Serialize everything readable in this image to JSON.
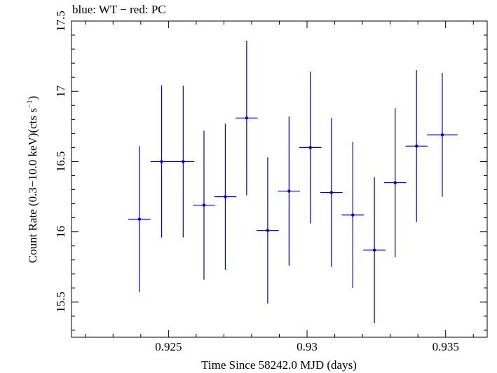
{
  "chart_data": {
    "type": "scatter",
    "title": "blue: WT − red: PC",
    "xlabel": "Time Since 58242.0 MJD (days)",
    "ylabel_main": "Count Rate (0.3−10.0 keV)(cts s",
    "ylabel_sup": "−1",
    "ylabel_end": ")",
    "xlim": [
      0.9215,
      0.9365
    ],
    "ylim": [
      15.25,
      17.5
    ],
    "x_ticks": [
      0.925,
      0.93,
      0.935
    ],
    "x_tick_labels": [
      "0.925",
      "0.93",
      "0.935"
    ],
    "y_ticks": [
      15.5,
      16,
      16.5,
      17,
      17.5
    ],
    "y_tick_labels": [
      "15.5",
      "16",
      "16.5",
      "17",
      "17.5"
    ],
    "series": [
      {
        "name": "WT",
        "color": "#0000cc",
        "points": [
          {
            "x": 0.92395,
            "xerr": 0.0004,
            "y": 16.09,
            "yerr": 0.52
          },
          {
            "x": 0.92475,
            "xerr": 0.0004,
            "y": 16.5,
            "yerr": 0.54
          },
          {
            "x": 0.92553,
            "xerr": 0.0004,
            "y": 16.5,
            "yerr": 0.54
          },
          {
            "x": 0.92628,
            "xerr": 0.0004,
            "y": 16.19,
            "yerr": 0.53
          },
          {
            "x": 0.92705,
            "xerr": 0.0004,
            "y": 16.25,
            "yerr": 0.52
          },
          {
            "x": 0.92782,
            "xerr": 0.0004,
            "y": 16.81,
            "yerr": 0.55
          },
          {
            "x": 0.92858,
            "xerr": 0.0004,
            "y": 16.01,
            "yerr": 0.52
          },
          {
            "x": 0.92935,
            "xerr": 0.0004,
            "y": 16.29,
            "yerr": 0.53
          },
          {
            "x": 0.93012,
            "xerr": 0.0004,
            "y": 16.6,
            "yerr": 0.54
          },
          {
            "x": 0.93088,
            "xerr": 0.0004,
            "y": 16.28,
            "yerr": 0.53
          },
          {
            "x": 0.93165,
            "xerr": 0.0004,
            "y": 16.12,
            "yerr": 0.52
          },
          {
            "x": 0.93243,
            "xerr": 0.0004,
            "y": 15.87,
            "yerr": 0.52
          },
          {
            "x": 0.93318,
            "xerr": 0.0004,
            "y": 16.35,
            "yerr": 0.53
          },
          {
            "x": 0.93395,
            "xerr": 0.0004,
            "y": 16.61,
            "yerr": 0.54
          },
          {
            "x": 0.93488,
            "xerr": 0.00055,
            "y": 16.69,
            "yerr": 0.44
          }
        ]
      }
    ]
  }
}
